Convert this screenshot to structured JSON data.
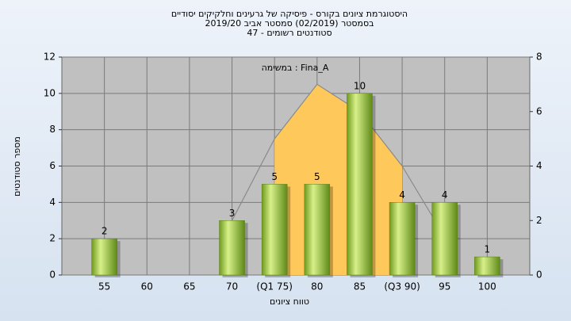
{
  "chart_data": {
    "type": "bar",
    "title": "היסטוגרמת ציונים בקורס - פיסיקה של גרעינים וחלקיקים יסודיים",
    "subtitle": "בסמסטר  (02/2019)  סמסטר אביב 2019/20",
    "subtitle2": "סטודנטים רשומים - 47",
    "annotation": "במשימה : Fina_A",
    "x_label": "טווח ציונים",
    "y_label": "מספר סטודנטים",
    "categories": [
      "55",
      "60",
      "65",
      "70",
      "(Q1 75)",
      "80",
      "85",
      "(Q3 90)",
      "95",
      "100"
    ],
    "values": [
      2,
      0,
      0,
      3,
      5,
      5,
      10,
      4,
      4,
      1
    ],
    "color": "#9acd32",
    "ylim": [
      0,
      12
    ],
    "yticks": [
      0,
      2,
      4,
      6,
      8,
      10,
      12
    ],
    "y2lim": [
      0,
      8
    ],
    "y2ticks": [
      0,
      2,
      4,
      6,
      8
    ],
    "grid": true,
    "series": [
      {
        "type": "area",
        "axis": "y2",
        "color": "#ffc85a",
        "values": [
          null,
          null,
          null,
          null,
          5,
          7,
          6,
          4,
          null,
          null
        ]
      },
      {
        "type": "line",
        "axis": "y2",
        "color": "#8a8a8a",
        "values": [
          null,
          null,
          null,
          2,
          5,
          7,
          6,
          4,
          1.4,
          null
        ]
      }
    ]
  }
}
